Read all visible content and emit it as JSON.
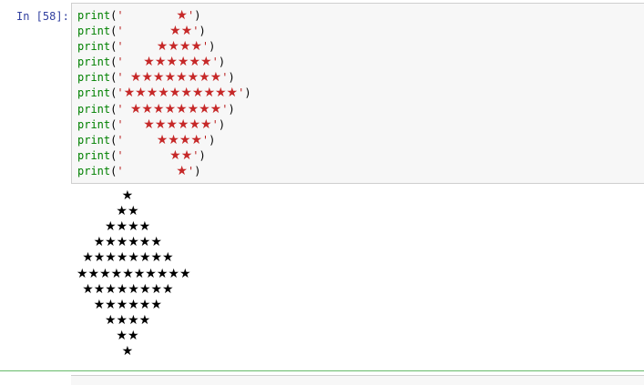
{
  "cell": {
    "prompt": "In [58]:"
  },
  "code": [
    {
      "kw": "print",
      "open": "(",
      "q1": "'",
      "pad": "        ",
      "stars": "★",
      "q2": "'",
      "close": ")"
    },
    {
      "kw": "print",
      "open": "(",
      "q1": "'",
      "pad": "       ",
      "stars": "★★",
      "q2": "'",
      "close": ")"
    },
    {
      "kw": "print",
      "open": "(",
      "q1": "'",
      "pad": "     ",
      "stars": "★★★★",
      "q2": "'",
      "close": ")"
    },
    {
      "kw": "print",
      "open": "(",
      "q1": "'",
      "pad": "   ",
      "stars": "★★★★★★",
      "q2": "'",
      "close": ")"
    },
    {
      "kw": "print",
      "open": "(",
      "q1": "'",
      "pad": " ",
      "stars": "★★★★★★★★",
      "q2": "'",
      "close": ")"
    },
    {
      "kw": "print",
      "open": "(",
      "q1": "'",
      "pad": "",
      "stars": "★★★★★★★★★★",
      "q2": "'",
      "close": ")"
    },
    {
      "kw": "print",
      "open": "(",
      "q1": "'",
      "pad": " ",
      "stars": "★★★★★★★★",
      "q2": "'",
      "close": ")"
    },
    {
      "kw": "print",
      "open": "(",
      "q1": "'",
      "pad": "   ",
      "stars": "★★★★★★",
      "q2": "'",
      "close": ")"
    },
    {
      "kw": "print",
      "open": "(",
      "q1": "'",
      "pad": "     ",
      "stars": "★★★★",
      "q2": "'",
      "close": ")"
    },
    {
      "kw": "print",
      "open": "(",
      "q1": "'",
      "pad": "       ",
      "stars": "★★",
      "q2": "'",
      "close": ")"
    },
    {
      "kw": "print",
      "open": "(",
      "q1": "'",
      "pad": "        ",
      "stars": "★",
      "q2": "'",
      "close": ")"
    }
  ],
  "output": [
    "        ★",
    "       ★★",
    "     ★★★★",
    "   ★★★★★★",
    " ★★★★★★★★",
    "★★★★★★★★★★",
    " ★★★★★★★★",
    "   ★★★★★★",
    "     ★★★★",
    "       ★★",
    "        ★"
  ],
  "colors": {
    "prompt": "#303f9f",
    "keyword": "#008000",
    "string": "#ba2121",
    "star_in_code": "#c62828",
    "selected_border": "#66bb6a"
  }
}
